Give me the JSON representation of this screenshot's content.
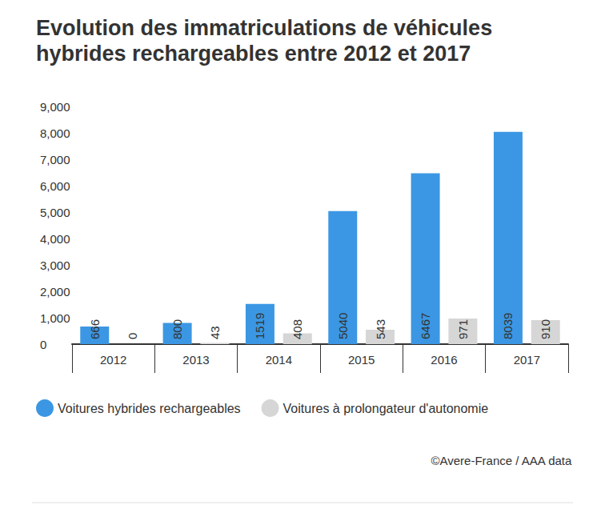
{
  "chart_data": {
    "type": "bar",
    "title": "Evolution des immatriculations de véhicules hybrides rechargeables entre 2012 et 2017",
    "categories": [
      "2012",
      "2013",
      "2014",
      "2015",
      "2016",
      "2017"
    ],
    "series": [
      {
        "name": "Voitures hybrides rechargeables",
        "color": "#3b97e3",
        "values": [
          666,
          800,
          1519,
          5040,
          6467,
          8039
        ]
      },
      {
        "name": "Voitures à prolongateur d'autonomie",
        "color": "#d6d6d6",
        "values": [
          0,
          43,
          408,
          543,
          971,
          910
        ]
      }
    ],
    "ylim": [
      0,
      9000
    ],
    "yticks": [
      0,
      {
        "value": 1000,
        "label": "1,000"
      },
      {
        "value": 2000,
        "label": "2,000"
      },
      {
        "value": 3000,
        "label": "3,000"
      },
      {
        "value": 4000,
        "label": "4,000"
      },
      {
        "value": 5000,
        "label": "5,000"
      },
      {
        "value": 6000,
        "label": "6,000"
      },
      {
        "value": 7000,
        "label": "7,000"
      },
      {
        "value": 8000,
        "label": "8,000"
      },
      {
        "value": 9000,
        "label": "9,000"
      }
    ],
    "grid": false,
    "legend": "bottom-left",
    "data_labels": true,
    "annotations": [
      "©Avere-France / AAA data"
    ]
  }
}
